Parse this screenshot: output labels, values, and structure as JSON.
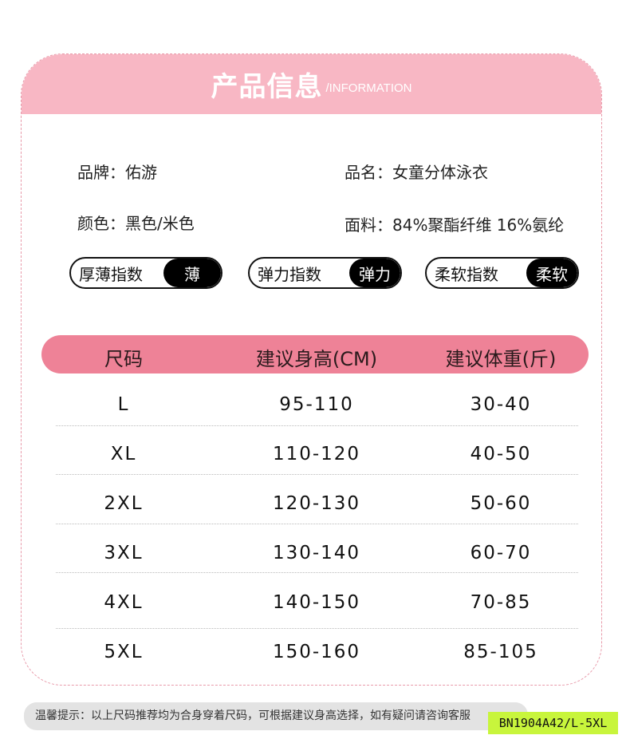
{
  "header": {
    "title": "产品信息",
    "subtitle": "/INFORMATION",
    "color": "#f8b7c4"
  },
  "info": {
    "brand": "品牌：佑游",
    "name": "品名：女童分体泳衣",
    "color": "颜色：黑色/米色",
    "fabric": "面料：84%聚酯纤维 16%氨纶"
  },
  "indices": [
    {
      "label": "厚薄指数",
      "value": "薄"
    },
    {
      "label": "弹力指数",
      "value": "弹力"
    },
    {
      "label": "柔软指数",
      "value": "柔软"
    }
  ],
  "table": {
    "header_color": "#ee8297",
    "columns": [
      "尺码",
      "建议身高(CM)",
      "建议体重(斤)"
    ],
    "rows": [
      [
        "L",
        "95-110",
        "30-40"
      ],
      [
        "XL",
        "110-120",
        "40-50"
      ],
      [
        "2XL",
        "120-130",
        "50-60"
      ],
      [
        "3XL",
        "130-140",
        "60-70"
      ],
      [
        "4XL",
        "140-150",
        "70-85"
      ],
      [
        "5XL",
        "150-160",
        "85-105"
      ]
    ]
  },
  "footer": {
    "tip": "温馨提示：以上尺码推荐均为合身穿着尺码，可根据建议身高选择，如有疑问请咨询客服",
    "code": "BN1904A42/L-5XL",
    "code_color": "#c8f53c"
  }
}
